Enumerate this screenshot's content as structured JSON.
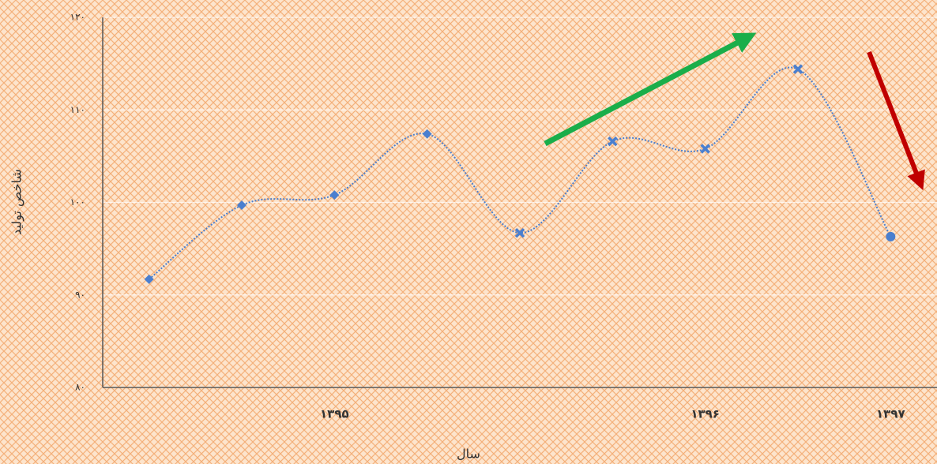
{
  "chart_data": {
    "type": "line",
    "xlabel": "سال",
    "ylabel": "شاخص تولید",
    "categories": [
      null,
      null,
      "۱۳۹۵",
      null,
      null,
      null,
      "۱۳۹۶",
      null,
      "۱۳۹۷"
    ],
    "series": [
      {
        "color": "#4a7fcf",
        "values": [
          91.7,
          99.7,
          100.8,
          107.4,
          96.7,
          106.6,
          105.8,
          114.4,
          96.3
        ],
        "markers": [
          "diamond",
          "diamond",
          "diamond",
          "diamond",
          "x",
          "x",
          "x",
          "x",
          "circle"
        ]
      }
    ],
    "ylim": [
      80,
      120
    ],
    "yticks": [
      {
        "value": 80,
        "label": "۸۰"
      },
      {
        "value": 90,
        "label": "۹۰"
      },
      {
        "value": 100,
        "label": "۱۰۰"
      },
      {
        "value": 110,
        "label": "۱۱۰"
      },
      {
        "value": 120,
        "label": "۱۲۰"
      }
    ],
    "grid": true,
    "smooth": true
  }
}
